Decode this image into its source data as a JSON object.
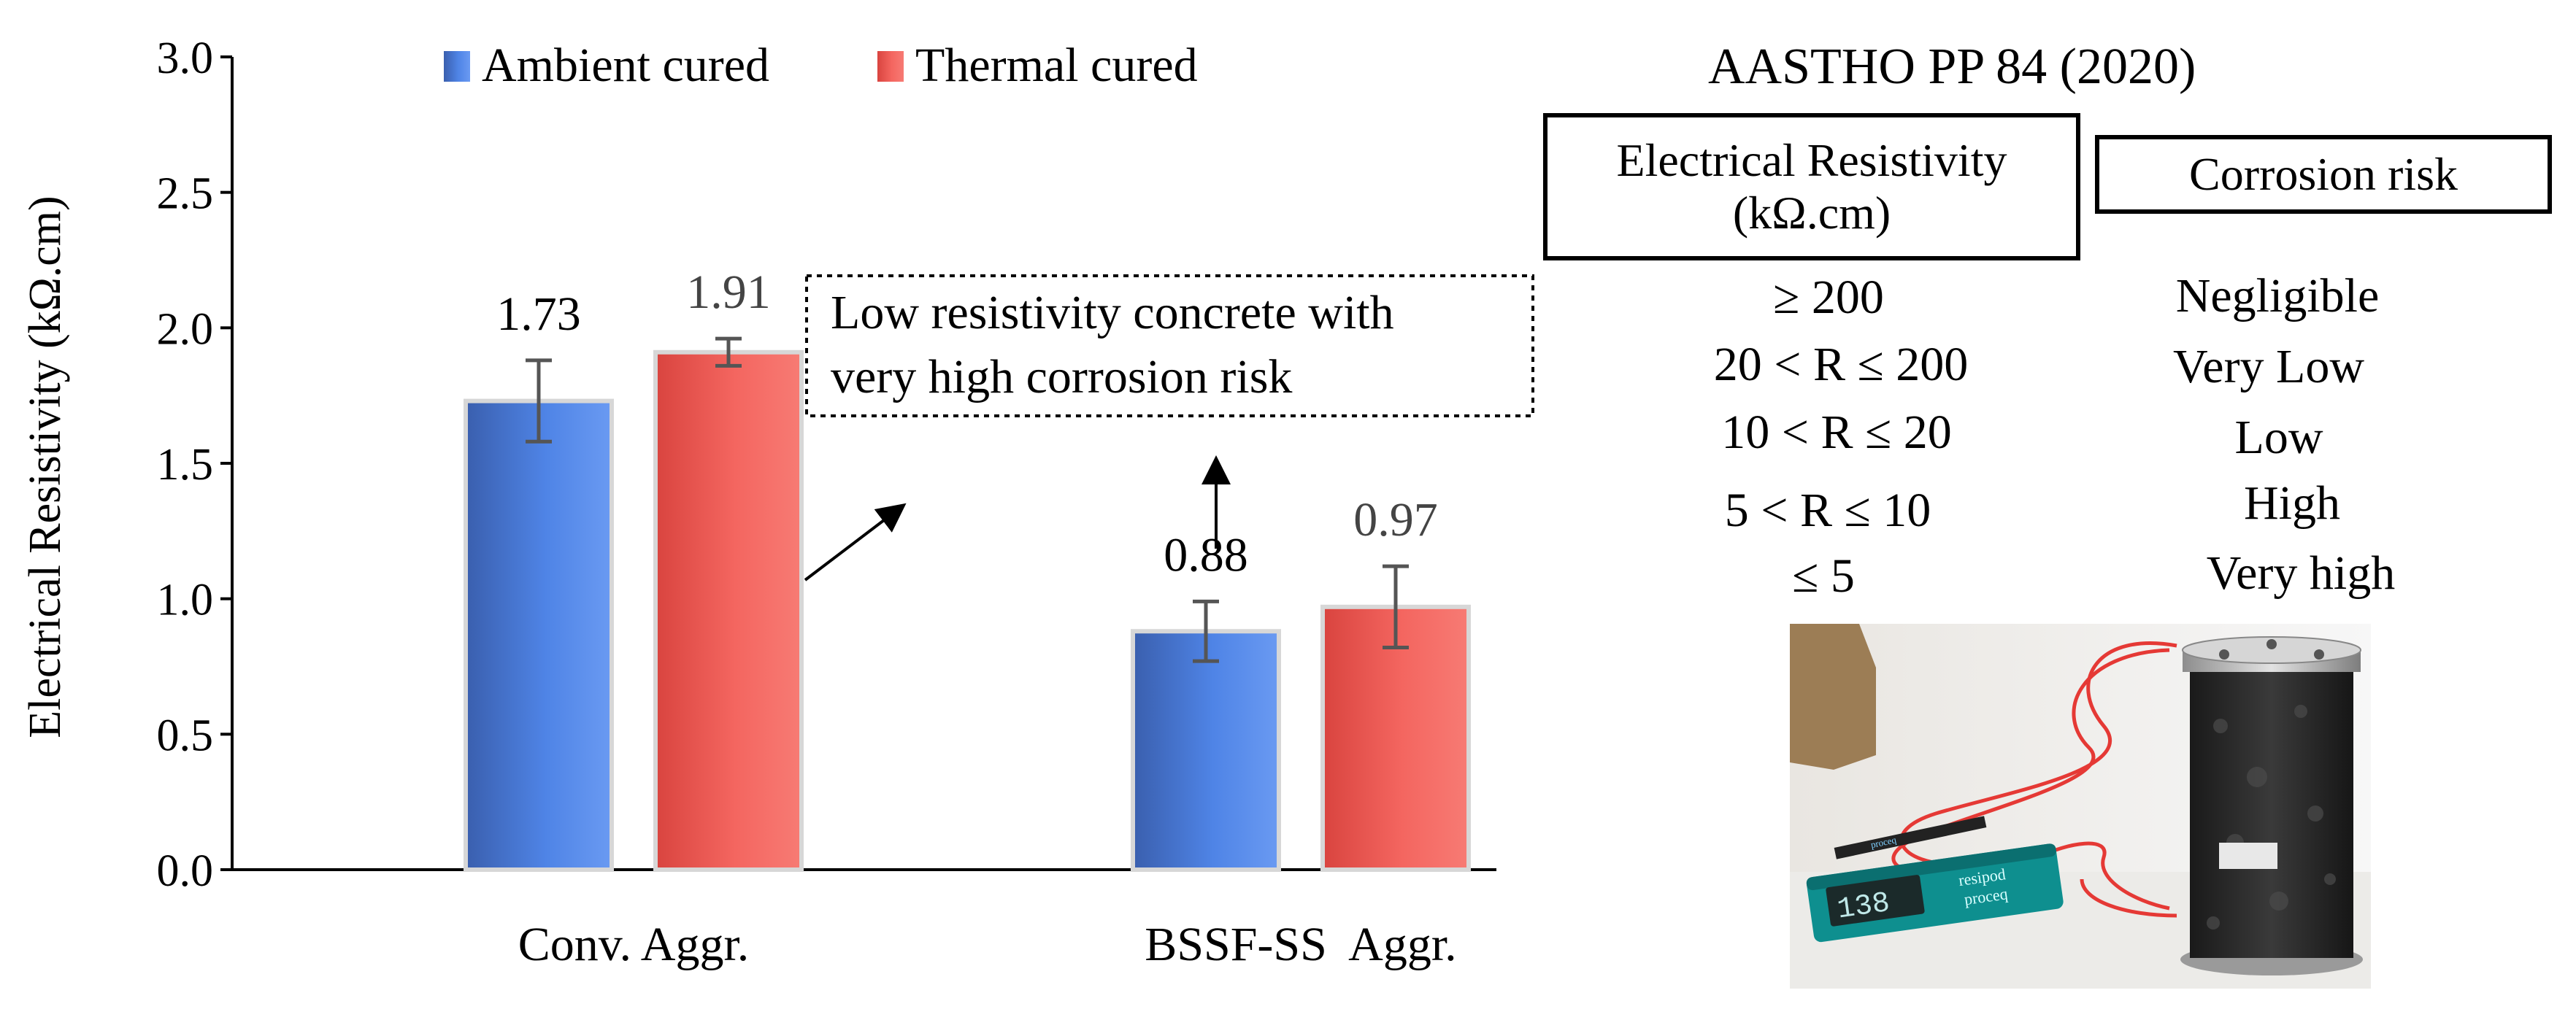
{
  "chart_data": {
    "type": "bar",
    "ylabel": "Electrical Resistivity (kΩ.cm)",
    "ylim": [
      0,
      3.0
    ],
    "yticks": [
      "0.0",
      "0.5",
      "1.0",
      "1.5",
      "2.0",
      "2.5",
      "3.0"
    ],
    "categories": [
      "Conv. Aggr.",
      "BSSF-SS  Aggr."
    ],
    "legend_position": "top",
    "series": [
      {
        "name": "Ambient cured",
        "color": "#4a78d8",
        "values": [
          1.73,
          0.88
        ],
        "errors": [
          0.15,
          0.11
        ],
        "labels": [
          "1.73",
          "0.88"
        ]
      },
      {
        "name": "Thermal cured",
        "color": "#f0605a",
        "values": [
          1.91,
          0.97
        ],
        "errors": [
          0.05,
          0.15
        ],
        "labels": [
          "1.91",
          "0.97"
        ]
      }
    ],
    "annotation": {
      "line1": "Low resistivity concrete with",
      "line2": "very high corrosion risk"
    }
  },
  "standard": {
    "title": "AASTHO  PP  84 (2020)",
    "header_resistivity_line1": "Electrical Resistivity",
    "header_resistivity_line2": "(kΩ.cm)",
    "header_risk": "Corrosion risk",
    "rows": [
      {
        "range": "≥ 200",
        "risk": "Negligible"
      },
      {
        "range": "20 < R ≤ 200",
        "risk": "Very Low"
      },
      {
        "range": "10 < R ≤ 20",
        "risk": "Low"
      },
      {
        "range": "5 < R ≤ 10",
        "risk": "High"
      },
      {
        "range": "≤ 5",
        "risk": "Very high"
      }
    ]
  },
  "photo": {
    "display_digits": "138",
    "device_brand": "resipod",
    "device_maker": "proceq",
    "strap_text": "proceq"
  }
}
